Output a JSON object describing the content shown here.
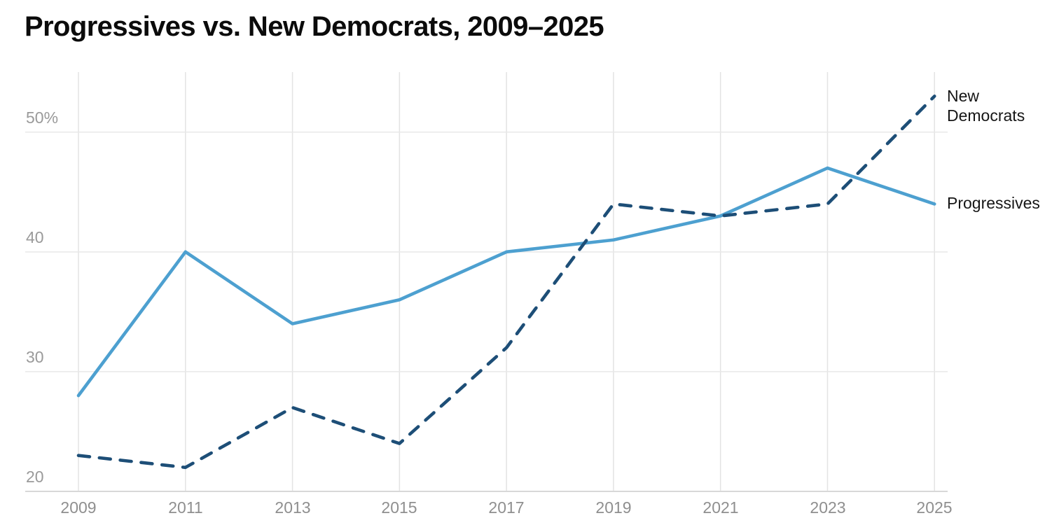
{
  "title": "Progressives vs. New Democrats, 2009–2025",
  "chart_data": {
    "type": "line",
    "x": [
      2009,
      2011,
      2013,
      2015,
      2017,
      2019,
      2021,
      2023,
      2025
    ],
    "categories": [
      "2009",
      "2011",
      "2013",
      "2015",
      "2017",
      "2019",
      "2021",
      "2023",
      "2025"
    ],
    "series": [
      {
        "name": "Progressives",
        "values": [
          28,
          40,
          34,
          36,
          40,
          41,
          43,
          47,
          44
        ],
        "color": "#4da0d0",
        "style": "solid"
      },
      {
        "name": "New Democrats",
        "values": [
          23,
          22,
          27,
          24,
          32,
          44,
          43,
          44,
          53
        ],
        "color": "#1d4e77",
        "style": "dashed"
      }
    ],
    "title": "Progressives vs. New Democrats, 2009–2025",
    "xlabel": "",
    "ylabel": "",
    "ylim": [
      20,
      55
    ],
    "y_ticks": [
      20,
      30,
      40,
      50
    ],
    "y_tick_labels": [
      "20",
      "30",
      "40",
      "50%"
    ],
    "grid": true,
    "legend_position": "direct-labels-at-line-ends"
  },
  "colors": {
    "progressives_line": "#4da0d0",
    "new_democrats_line": "#1d4e77",
    "gridline": "#e8e8e8",
    "vertical_gridline": "#e3e3e3",
    "baseline": "#d8d8d8",
    "tick_text": "#9a9a9a",
    "title_text": "#0b0b0b",
    "series_label_text": "#161616"
  }
}
